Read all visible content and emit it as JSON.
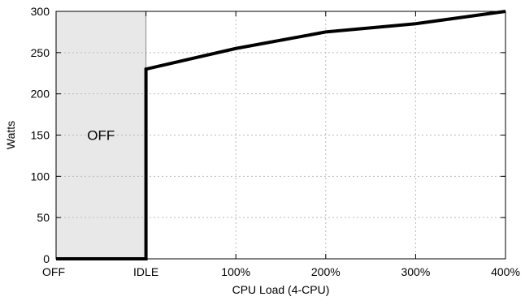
{
  "chart_data": {
    "type": "line",
    "xlabel": "CPU Load (4-CPU)",
    "ylabel": "Watts",
    "ylim": [
      0,
      300
    ],
    "yticks": [
      0,
      50,
      100,
      150,
      200,
      250,
      300
    ],
    "categories": [
      "OFF",
      "IDLE",
      "100%",
      "200%",
      "300%",
      "400%"
    ],
    "grid": "dotted",
    "series": [
      {
        "points": [
          [
            0,
            0
          ],
          [
            1,
            0
          ],
          [
            1,
            230
          ],
          [
            2,
            255
          ],
          [
            3,
            275
          ],
          [
            4,
            285
          ],
          [
            5,
            300
          ]
        ]
      }
    ],
    "shaded_region": {
      "x_start": 0,
      "x_end": 1,
      "label": "OFF",
      "color": "#e8e8e8"
    },
    "line_color": "#000000"
  }
}
